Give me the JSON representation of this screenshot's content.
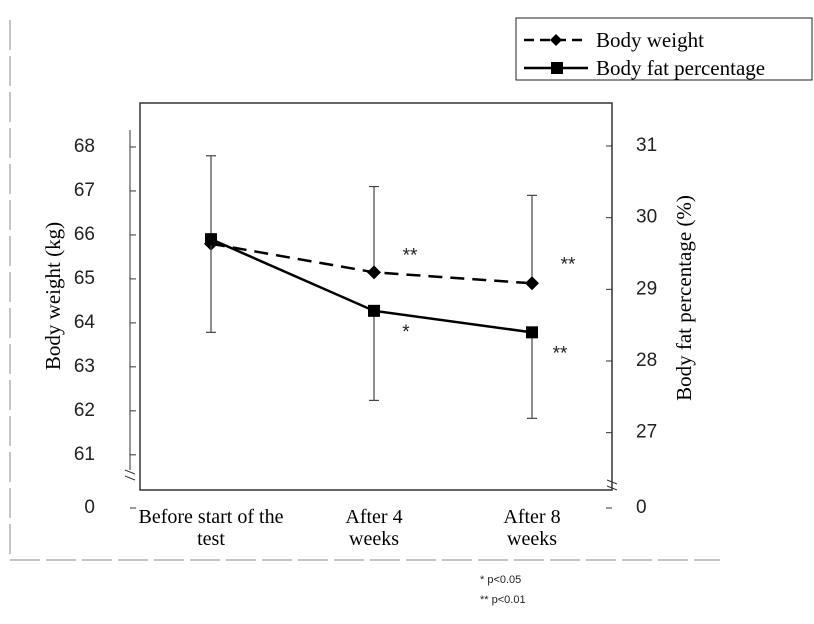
{
  "chart_data": {
    "type": "line",
    "categories": [
      "Before start of the test",
      "After 4 weeks",
      "After 8 weeks"
    ],
    "y_label": "Body weight (kg)",
    "y2_label": "Body fat percentage (%)",
    "ylim": [
      0,
      69
    ],
    "y_break": [
      0,
      60.2
    ],
    "yticks": [
      0,
      61,
      62,
      63,
      64,
      65,
      66,
      67,
      68
    ],
    "y2lim": [
      0,
      31.6
    ],
    "y2_break": [
      0,
      26.2
    ],
    "y2ticks": [
      0,
      27,
      28,
      29,
      30,
      31
    ],
    "series": [
      {
        "name": "Body weight",
        "color": "#000000",
        "dash": true,
        "marker": "diamond",
        "values": [
          65.8,
          65.15,
          64.9
        ],
        "errors": [
          2.0,
          1.95,
          2.0
        ],
        "sig_labels": [
          null,
          "**",
          "**"
        ]
      },
      {
        "name": "Body fat percentage",
        "color": "#000000",
        "dash": false,
        "marker": "square",
        "axis": "y2",
        "values": [
          29.7,
          28.7,
          28.4
        ],
        "errors": [
          1.3,
          1.25,
          1.2
        ],
        "sig_labels": [
          null,
          "*",
          "**"
        ]
      }
    ],
    "footnotes": [
      "* p<0.05",
      "** p<0.01"
    ]
  }
}
